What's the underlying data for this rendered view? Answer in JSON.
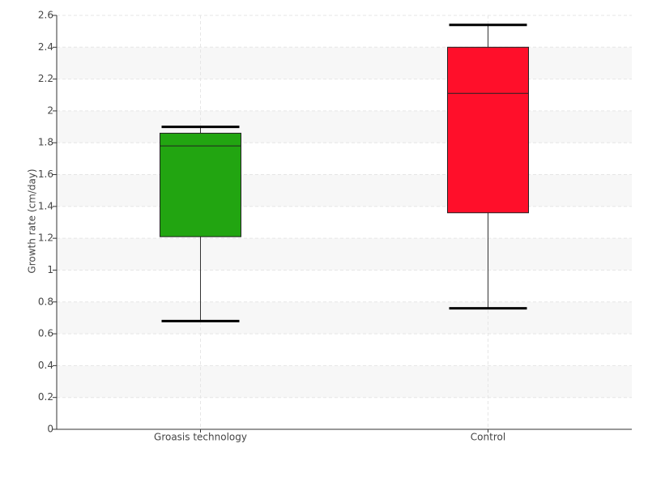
{
  "chart_data": {
    "type": "box",
    "y_label": "Growth rate (cm/day)",
    "categories": [
      "Groasis technology",
      "Control"
    ],
    "colors": [
      "#22a511",
      "#ff0f2a"
    ],
    "boxes": [
      {
        "min": 0.68,
        "q1": 1.21,
        "median": 1.78,
        "q3": 1.86,
        "max": 1.9
      },
      {
        "min": 0.76,
        "q1": 1.36,
        "median": 2.11,
        "q3": 2.4,
        "max": 2.54
      }
    ],
    "ylim": [
      0,
      2.6
    ],
    "yticks": [
      0,
      0.2,
      0.4,
      0.6,
      0.8,
      1,
      1.2,
      1.4,
      1.6,
      1.8,
      2,
      2.2,
      2.4,
      2.6
    ],
    "grid": true
  }
}
